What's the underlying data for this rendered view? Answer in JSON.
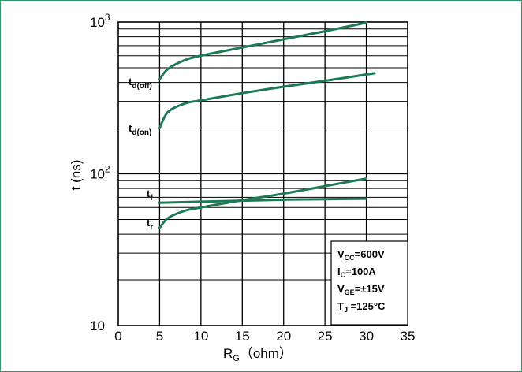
{
  "chart_data": {
    "type": "line",
    "xlabel": {
      "main": "R",
      "sub": "G",
      "rest": "（ohm）"
    },
    "ylabel": "t (ns)",
    "xlim": [
      0,
      35
    ],
    "ylim": [
      10,
      1000
    ],
    "yscale": "log",
    "x_ticks": [
      "0",
      "5",
      "10",
      "15",
      "20",
      "25",
      "30",
      "35"
    ],
    "y_ticks": [
      {
        "value": 10,
        "base": "10",
        "exp": ""
      },
      {
        "value": 100,
        "base": "10",
        "exp": "2"
      },
      {
        "value": 1000,
        "base": "10",
        "exp": "3"
      }
    ],
    "grid": true,
    "series": [
      {
        "name": "td(off)",
        "label_main": "t",
        "label_sub": "d(off)",
        "color": "#1e7a55",
        "x": [
          5,
          6,
          8,
          10,
          15,
          20,
          25,
          30
        ],
        "y": [
          420,
          490,
          560,
          600,
          680,
          770,
          870,
          990
        ]
      },
      {
        "name": "td(on)",
        "label_main": "t",
        "label_sub": "d(on)",
        "color": "#1e7a55",
        "x": [
          5,
          6,
          8,
          10,
          15,
          20,
          25,
          31
        ],
        "y": [
          200,
          255,
          290,
          305,
          340,
          375,
          410,
          460
        ]
      },
      {
        "name": "tf",
        "label_main": "t",
        "label_sub": "f",
        "color": "#1e7a55",
        "x": [
          5,
          10,
          15,
          20,
          25,
          30
        ],
        "y": [
          64.5,
          65.5,
          66.5,
          67.5,
          68,
          68.5
        ]
      },
      {
        "name": "tr",
        "label_main": "t",
        "label_sub": "r",
        "color": "#1e7a55",
        "x": [
          5,
          6,
          8,
          10,
          15,
          20,
          25,
          30
        ],
        "y": [
          44,
          51,
          57,
          60,
          67,
          74,
          83,
          93
        ]
      }
    ],
    "conditions": [
      {
        "main": "V",
        "sub": "CC",
        "value": "=600V"
      },
      {
        "main": "I",
        "sub": "C",
        "value": "=100A"
      },
      {
        "main": "V",
        "sub": "GE",
        "value": "=±15V"
      },
      {
        "main": "T",
        "sub": "J",
        "value": " =125°C"
      }
    ]
  }
}
